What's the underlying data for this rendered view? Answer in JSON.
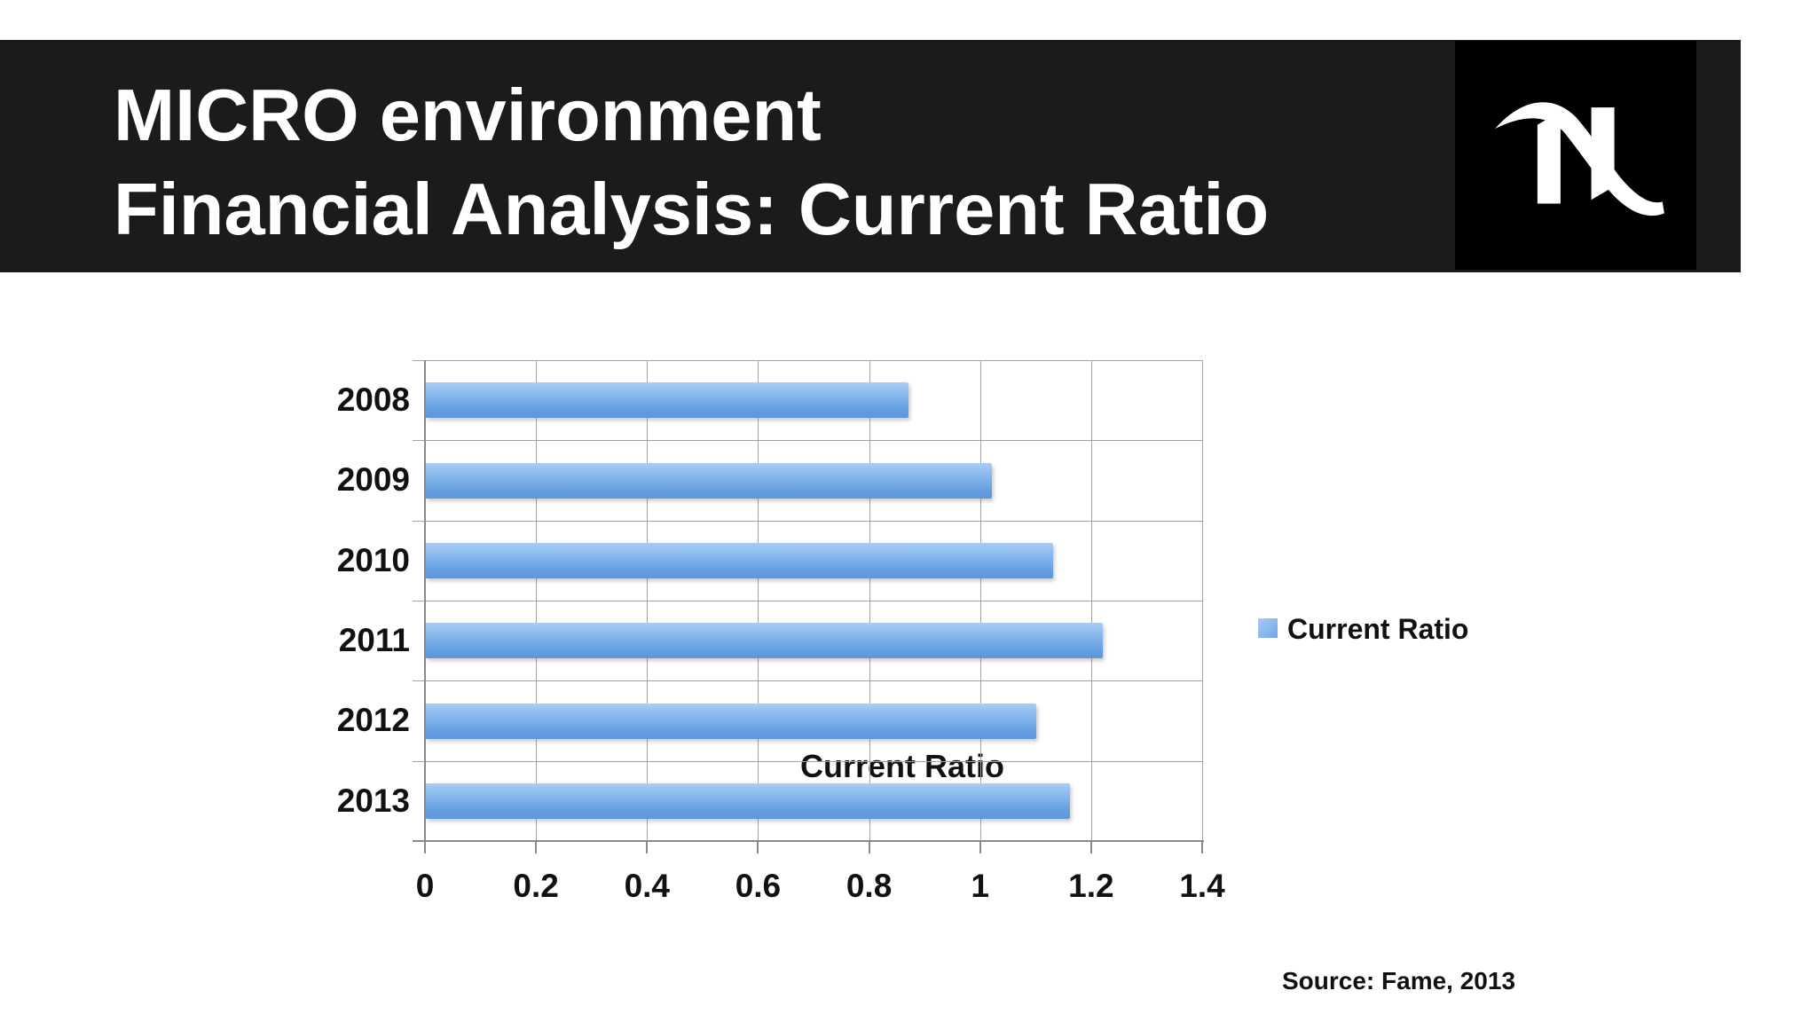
{
  "header": {
    "title_line1": "MICRO environment",
    "title_line2": "Financial Analysis: Current Ratio",
    "logo": "nespresso-n-logo"
  },
  "chart_data": {
    "type": "bar",
    "orientation": "horizontal",
    "title": "Current Ratio",
    "categories": [
      "2008",
      "2009",
      "2010",
      "2011",
      "2012",
      "2013"
    ],
    "values": [
      0.87,
      1.02,
      1.13,
      1.22,
      1.1,
      1.16
    ],
    "series": [
      {
        "name": "Current Ratio",
        "values": [
          0.87,
          1.02,
          1.13,
          1.22,
          1.1,
          1.16
        ]
      }
    ],
    "xlabel": "",
    "ylabel": "",
    "xlim": [
      0,
      1.4
    ],
    "x_ticks": [
      "0",
      "0.2",
      "0.4",
      "0.6",
      "0.8",
      "1",
      "1.2",
      "1.4"
    ],
    "grid": true,
    "legend_label": "Current Ratio",
    "legend_position": "right",
    "source": "Source: Fame, 2013"
  },
  "colors": {
    "header_bg": "#1b1b1b",
    "logo_bg": "#000000",
    "title_text": "#ffffff",
    "chart_text": "#111111",
    "gridline": "#a3a3a3",
    "axis": "#8a8a8a",
    "bar_light": "#a9cdf3",
    "bar_dark": "#5d97da"
  }
}
